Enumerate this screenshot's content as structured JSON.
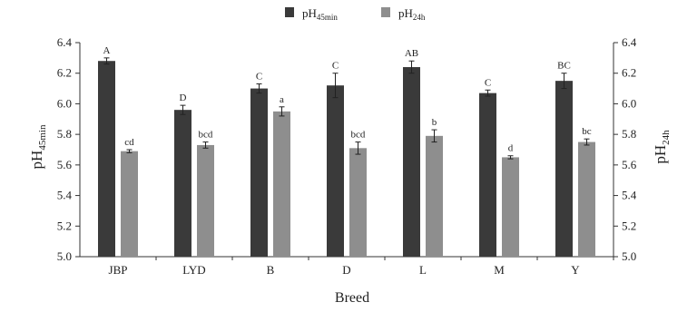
{
  "chart_data": {
    "type": "bar",
    "xlabel": "Breed",
    "ylabel_left": {
      "base": "pH",
      "sub": "45min"
    },
    "ylabel_right": {
      "base": "pH",
      "sub": "24h"
    },
    "ylim": [
      5.0,
      6.4
    ],
    "yticks": [
      "5.0",
      "5.2",
      "5.4",
      "5.6",
      "5.8",
      "6.0",
      "6.2",
      "6.4"
    ],
    "categories": [
      "JBP",
      "LYD",
      "B",
      "D",
      "L",
      "M",
      "Y"
    ],
    "legend_position": "top-center",
    "grid": false,
    "series": [
      {
        "name": "pH45min",
        "legend_base": "pH",
        "legend_sub": "45min",
        "color": "#3a3a3a",
        "values": [
          6.28,
          5.96,
          6.1,
          6.12,
          6.24,
          6.07,
          6.15
        ],
        "errors": [
          0.02,
          0.03,
          0.03,
          0.08,
          0.04,
          0.02,
          0.05
        ],
        "labels": [
          "A",
          "D",
          "C",
          "C",
          "AB",
          "C",
          "BC"
        ]
      },
      {
        "name": "pH24h",
        "legend_base": "pH",
        "legend_sub": "24h",
        "color": "#8e8e8e",
        "values": [
          5.69,
          5.73,
          5.95,
          5.71,
          5.79,
          5.65,
          5.75
        ],
        "errors": [
          0.01,
          0.02,
          0.03,
          0.04,
          0.04,
          0.01,
          0.02
        ],
        "labels": [
          "cd",
          "bcd",
          "a",
          "bcd",
          "b",
          "d",
          "bc"
        ]
      }
    ]
  }
}
